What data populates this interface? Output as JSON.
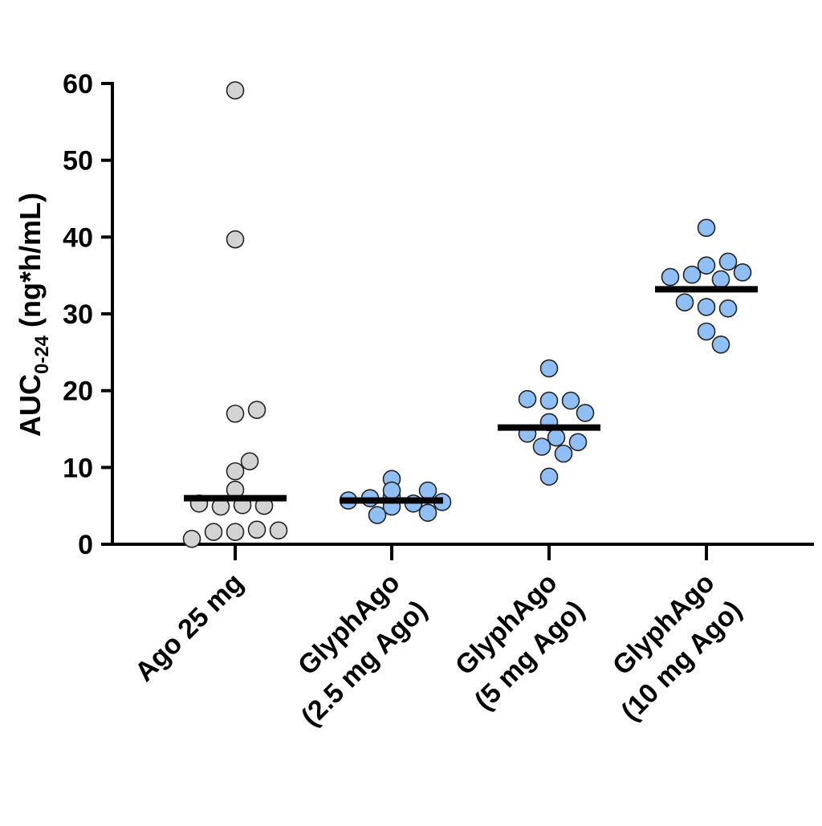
{
  "chart_data": {
    "type": "scatter",
    "title": "",
    "xlabel": "",
    "ylabel": "AUC",
    "ylabel_subscript": "0-24",
    "ylabel_units": " (ng*h/mL)",
    "ylim": [
      0,
      60
    ],
    "yticks": [
      "0",
      "10",
      "20",
      "30",
      "40",
      "50",
      "60"
    ],
    "grid": false,
    "categories": [
      {
        "line1": "Ago 25 mg",
        "line2": ""
      },
      {
        "line1": "GlyphAgo",
        "line2": "(2.5 mg Ago)"
      },
      {
        "line1": "GlyphAgo",
        "line2": "(5 mg Ago)"
      },
      {
        "line1": "GlyphAgo",
        "line2": "(10 mg Ago)"
      }
    ],
    "series": [
      {
        "name": "Ago 25 mg",
        "color": "#d3d3d3",
        "mean": 6.0,
        "values": [
          59.1,
          39.7,
          17.0,
          17.5,
          9.5,
          10.8,
          7.1,
          5.1,
          4.9,
          5.0,
          5.3,
          1.6,
          1.9,
          1.6,
          1.8,
          0.7
        ]
      },
      {
        "name": "GlyphAgo (2.5 mg Ago)",
        "color": "#8fbff5",
        "mean": 5.7,
        "values": [
          8.5,
          6.2,
          5.3,
          6.0,
          7.0,
          5.7,
          7.0,
          5.5,
          4.9,
          3.8,
          4.1
        ]
      },
      {
        "name": "GlyphAgo (5 mg Ago)",
        "color": "#8fbff5",
        "mean": 15.2,
        "values": [
          22.9,
          18.7,
          18.7,
          18.9,
          17.1,
          15.9,
          13.9,
          12.7,
          13.3,
          14.4,
          11.8,
          8.8
        ]
      },
      {
        "name": "GlyphAgo (10 mg Ago)",
        "color": "#8fbff5",
        "mean": 33.2,
        "values": [
          41.2,
          36.3,
          36.8,
          34.5,
          35.1,
          35.4,
          34.8,
          30.9,
          30.7,
          31.5,
          27.7,
          26.0
        ]
      }
    ]
  }
}
